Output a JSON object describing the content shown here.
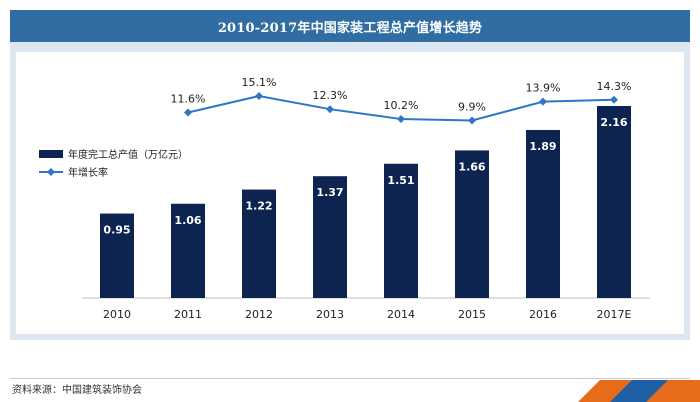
{
  "title": "2010-2017年中国家装工程总产值增长趋势",
  "source": "资料来源：中国建筑装饰协会",
  "colors": {
    "bar": "#0d2450",
    "line": "#2e76c6",
    "title_bg": "#2f6da3",
    "frame": "#dce7f2",
    "stripe_orange": "#e86a1b",
    "stripe_blue": "#1f5fa6"
  },
  "chart_data": {
    "type": "bar+line",
    "categories": [
      "2010",
      "2011",
      "2012",
      "2013",
      "2014",
      "2015",
      "2016",
      "2017E"
    ],
    "series": [
      {
        "name": "年度完工总产值（万亿元）",
        "type": "bar",
        "values": [
          0.95,
          1.06,
          1.22,
          1.37,
          1.51,
          1.66,
          1.89,
          2.16
        ],
        "labels": [
          "0.95",
          "1.06",
          "1.22",
          "1.37",
          "1.51",
          "1.66",
          "1.89",
          "2.16"
        ]
      },
      {
        "name": "年增长率",
        "type": "line",
        "values": [
          null,
          11.6,
          15.1,
          12.3,
          10.2,
          9.9,
          13.9,
          14.3
        ],
        "labels": [
          "",
          "11.6%",
          "15.1%",
          "12.3%",
          "10.2%",
          "9.9%",
          "13.9%",
          "14.3%"
        ]
      }
    ],
    "legend_position": "left",
    "grid": false
  }
}
